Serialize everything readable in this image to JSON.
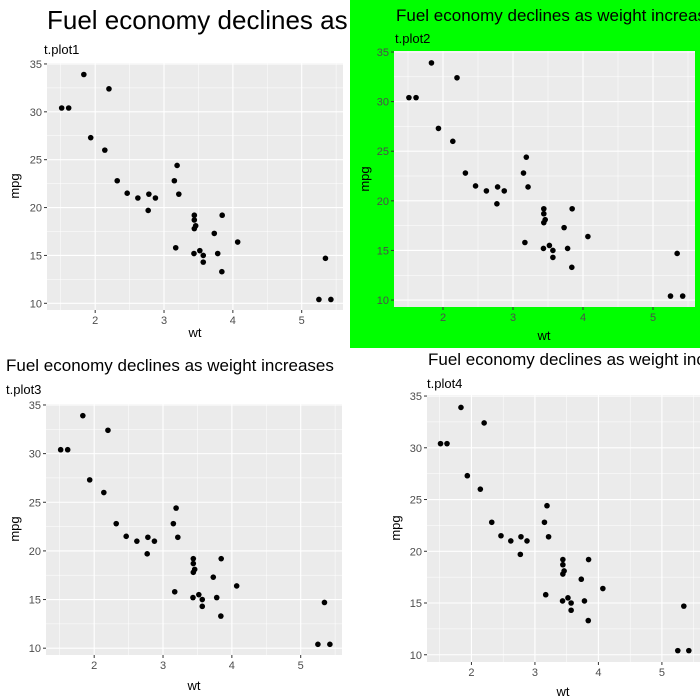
{
  "shared_data": {
    "x": [
      2.62,
      2.875,
      2.32,
      3.215,
      3.44,
      3.46,
      3.57,
      3.19,
      3.15,
      3.44,
      3.44,
      4.07,
      3.73,
      3.78,
      5.25,
      5.424,
      5.345,
      2.2,
      1.615,
      1.835,
      2.465,
      3.52,
      3.435,
      3.84,
      3.845,
      1.935,
      2.14,
      1.513,
      3.17,
      2.77,
      3.57,
      2.78
    ],
    "y": [
      21.0,
      21.0,
      22.8,
      21.4,
      18.7,
      18.1,
      14.3,
      24.4,
      22.8,
      19.2,
      17.8,
      16.4,
      17.3,
      15.2,
      10.4,
      10.4,
      14.7,
      32.4,
      30.4,
      33.9,
      21.5,
      15.5,
      15.2,
      13.3,
      19.2,
      27.3,
      26.0,
      30.4,
      15.8,
      19.7,
      15.0,
      21.4
    ]
  },
  "chart_data": [
    {
      "type": "scatter",
      "title": "Fuel economy declines as weight increases",
      "subtitle": "t.plot1",
      "xlabel": "wt",
      "ylabel": "mpg",
      "xticks": [
        2,
        3,
        4,
        5
      ],
      "yticks": [
        10,
        15,
        20,
        25,
        30,
        35
      ],
      "grid": true,
      "background_color": "#ffffff",
      "panel_color": "#ebebeb",
      "point_color": "#000000",
      "title_size": "large"
    },
    {
      "type": "scatter",
      "title": "Fuel economy declines as weight increases",
      "subtitle": "t.plot2",
      "xlabel": "wt",
      "ylabel": "mpg",
      "xticks": [
        2,
        3,
        4,
        5
      ],
      "yticks": [
        10,
        15,
        20,
        25,
        30,
        35
      ],
      "grid": true,
      "background_color": "#00ff00",
      "panel_color": "#ebebeb",
      "point_color": "#000000",
      "title_size": "medium"
    },
    {
      "type": "scatter",
      "title": "Fuel economy declines as weight increases",
      "subtitle": "t.plot3",
      "xlabel": "wt",
      "ylabel": "mpg",
      "xticks": [
        2,
        3,
        4,
        5
      ],
      "yticks": [
        10,
        15,
        20,
        25,
        30,
        35
      ],
      "grid": true,
      "background_color": "#ffffff",
      "panel_color": "#ebebeb",
      "point_color": "#000000",
      "title_size": "medium"
    },
    {
      "type": "scatter",
      "title": "Fuel economy declines as weight increases",
      "subtitle": "t.plot4",
      "xlabel": "wt",
      "ylabel": "mpg",
      "xticks": [
        2,
        3,
        4,
        5
      ],
      "yticks": [
        10,
        15,
        20,
        25,
        30,
        35
      ],
      "grid": true,
      "background_color": "#ffffff",
      "panel_color": "#ebebeb",
      "point_color": "#000000",
      "title_size": "medium"
    }
  ]
}
